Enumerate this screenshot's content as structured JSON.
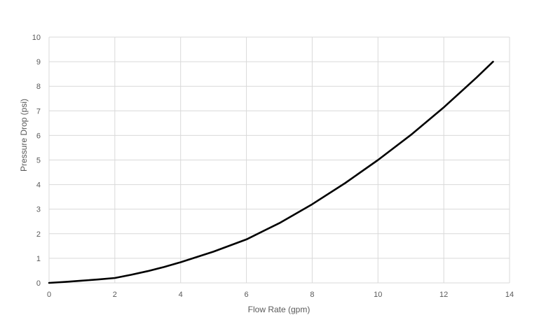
{
  "chart_data": {
    "type": "line",
    "title": "",
    "xlabel": "Flow Rate (gpm)",
    "ylabel": "Pressure Drop (psi)",
    "xlim": [
      0,
      14
    ],
    "ylim": [
      0,
      10
    ],
    "x_ticks": [
      "0",
      "2",
      "4",
      "6",
      "8",
      "10",
      "12",
      "14"
    ],
    "y_ticks": [
      "0",
      "1",
      "2",
      "3",
      "4",
      "5",
      "6",
      "7",
      "8",
      "9",
      "10"
    ],
    "grid": true,
    "legend": "none",
    "series": [
      {
        "color": "#000000",
        "x": [
          0,
          0.5,
          1,
          1.5,
          2,
          2.5,
          3,
          3.5,
          4,
          5,
          6,
          7,
          8,
          9,
          10,
          11,
          12,
          13,
          13.5
        ],
        "y": [
          0.0,
          0.04,
          0.09,
          0.14,
          0.2,
          0.33,
          0.48,
          0.65,
          0.84,
          1.27,
          1.77,
          2.43,
          3.2,
          4.06,
          5.0,
          6.02,
          7.14,
          8.36,
          9.0
        ]
      }
    ]
  }
}
